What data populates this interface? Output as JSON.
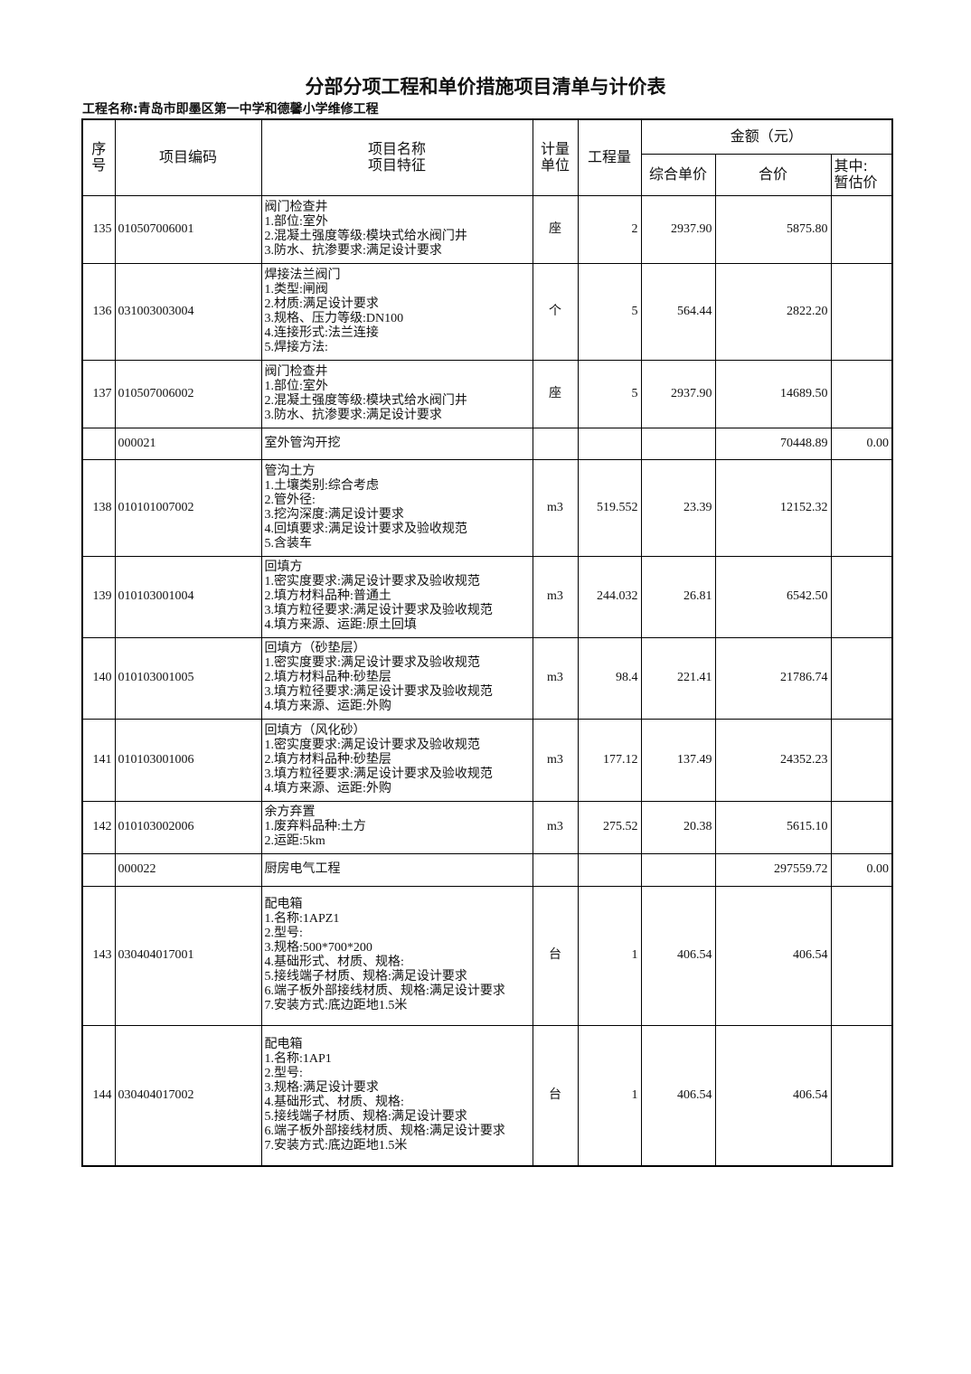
{
  "title": "分部分项工程和单价措施项目清单与计价表",
  "project_name": "工程名称:青岛市即墨区第一中学和德馨小学维修工程",
  "headers": {
    "seq": "序\n号",
    "code": "项目编码",
    "name": "项目名称\n项目特征",
    "unit": "计量\n单位",
    "qty": "工程量",
    "amount": "金额（元）",
    "unit_price": "综合单价",
    "total": "合价",
    "provisional": "其中:\n暂估价"
  },
  "rows": [
    {
      "seq": "135",
      "code": "010507006001",
      "desc": "阀门检查井\n1.部位:室外\n2.混凝土强度等级:模块式给水阀门井\n3.防水、抗渗要求:满足设计要求",
      "unit": "座",
      "qty": "2",
      "price": "2937.90",
      "total": "5875.80",
      "prov": ""
    },
    {
      "seq": "136",
      "code": "031003003004",
      "desc": "焊接法兰阀门\n1.类型:闸阀\n2.材质:满足设计要求\n3.规格、压力等级:DN100\n4.连接形式:法兰连接\n5.焊接方法:",
      "unit": "个",
      "qty": "5",
      "price": "564.44",
      "total": "2822.20",
      "prov": ""
    },
    {
      "seq": "137",
      "code": "010507006002",
      "desc": "阀门检查井\n1.部位:室外\n2.混凝土强度等级:模块式给水阀门井\n3.防水、抗渗要求:满足设计要求",
      "unit": "座",
      "qty": "5",
      "price": "2937.90",
      "total": "14689.50",
      "prov": ""
    },
    {
      "seq": "",
      "code": "000021",
      "desc": "室外管沟开挖",
      "unit": "",
      "qty": "",
      "price": "",
      "total": "70448.89",
      "prov": "0.00"
    },
    {
      "seq": "138",
      "code": "010101007002",
      "desc": "管沟土方\n1.土壤类别:综合考虑\n2.管外径:\n3.挖沟深度:满足设计要求\n4.回填要求:满足设计要求及验收规范\n5.含装车",
      "unit": "m3",
      "qty": "519.552",
      "price": "23.39",
      "total": "12152.32",
      "prov": ""
    },
    {
      "seq": "139",
      "code": "010103001004",
      "desc": "回填方\n1.密实度要求:满足设计要求及验收规范\n2.填方材料品种:普通土\n3.填方粒径要求:满足设计要求及验收规范\n4.填方来源、运距:原土回填",
      "unit": "m3",
      "qty": "244.032",
      "price": "26.81",
      "total": "6542.50",
      "prov": ""
    },
    {
      "seq": "140",
      "code": "010103001005",
      "desc": "回填方（砂垫层）\n1.密实度要求:满足设计要求及验收规范\n2.填方材料品种:砂垫层\n3.填方粒径要求:满足设计要求及验收规范\n4.填方来源、运距:外购",
      "unit": "m3",
      "qty": "98.4",
      "price": "221.41",
      "total": "21786.74",
      "prov": ""
    },
    {
      "seq": "141",
      "code": "010103001006",
      "desc": "回填方（风化砂）\n1.密实度要求:满足设计要求及验收规范\n2.填方材料品种:砂垫层\n3.填方粒径要求:满足设计要求及验收规范\n4.填方来源、运距:外购",
      "unit": "m3",
      "qty": "177.12",
      "price": "137.49",
      "total": "24352.23",
      "prov": ""
    },
    {
      "seq": "142",
      "code": "010103002006",
      "desc": "余方弃置\n1.废弃料品种:土方\n2.运距:5km",
      "unit": "m3",
      "qty": "275.52",
      "price": "20.38",
      "total": "5615.10",
      "prov": ""
    },
    {
      "seq": "",
      "code": "000022",
      "desc": "厨房电气工程",
      "unit": "",
      "qty": "",
      "price": "",
      "total": "297559.72",
      "prov": "0.00"
    },
    {
      "seq": "143",
      "code": "030404017001",
      "desc": "配电箱\n1.名称:1APZ1\n2.型号:\n3.规格:500*700*200\n4.基础形式、材质、规格:\n5.接线端子材质、规格:满足设计要求\n6.端子板外部接线材质、规格:满足设计要求\n7.安装方式:底边距地1.5米",
      "unit": "台",
      "qty": "1",
      "price": "406.54",
      "total": "406.54",
      "prov": ""
    },
    {
      "seq": "144",
      "code": "030404017002",
      "desc": "配电箱\n1.名称:1AP1\n2.型号:\n3.规格:满足设计要求\n4.基础形式、材质、规格:\n5.接线端子材质、规格:满足设计要求\n6.端子板外部接线材质、规格:满足设计要求\n7.安装方式:底边距地1.5米",
      "unit": "台",
      "qty": "1",
      "price": "406.54",
      "total": "406.54",
      "prov": ""
    }
  ]
}
